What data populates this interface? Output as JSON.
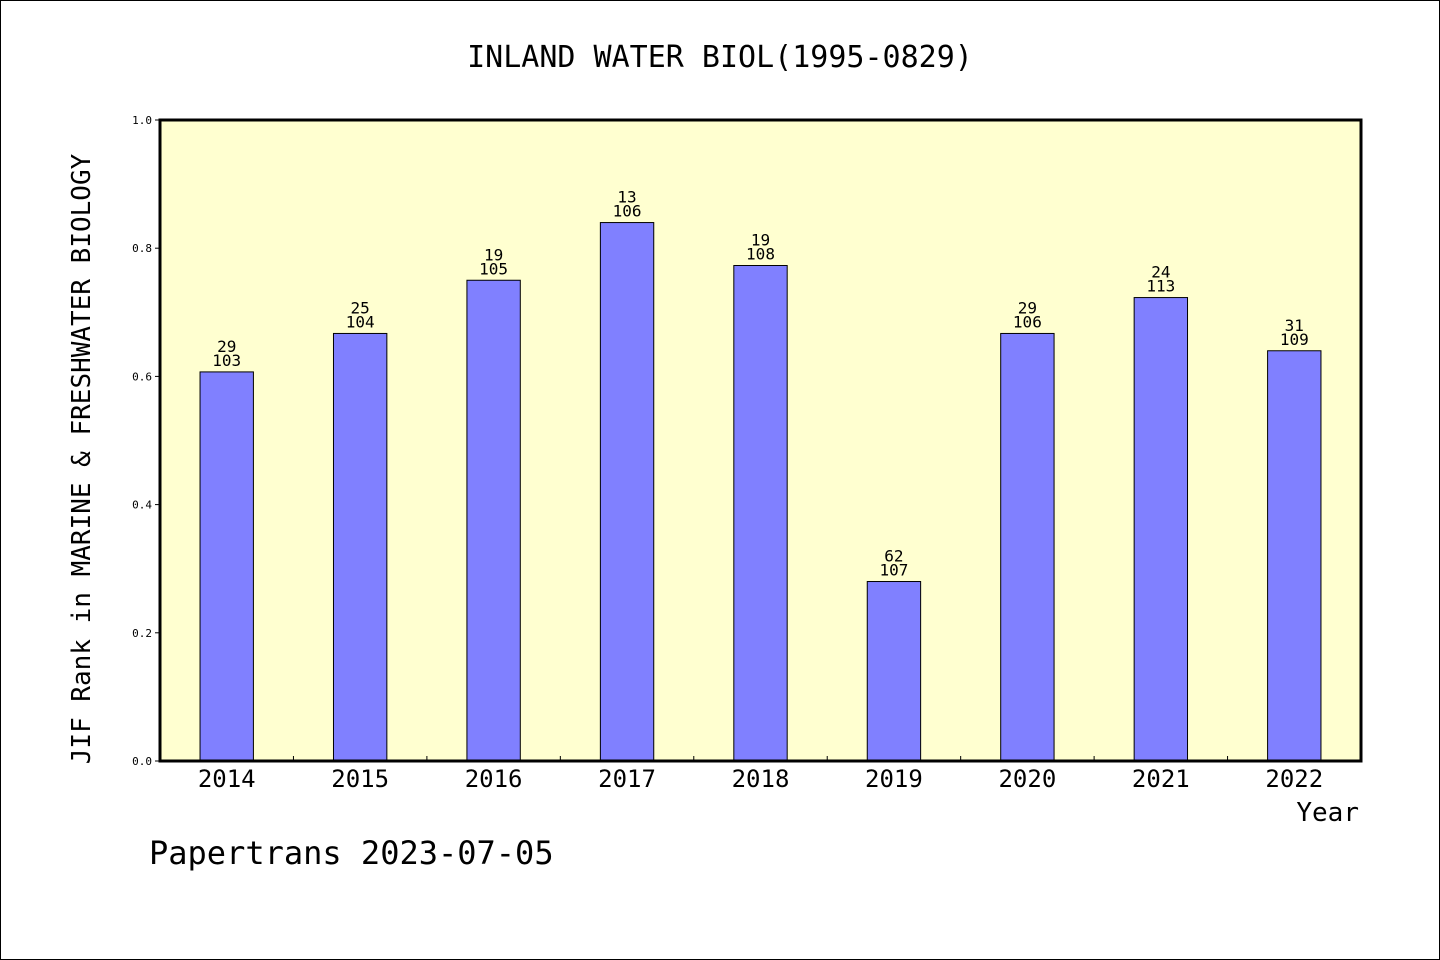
{
  "chart_data": {
    "type": "bar",
    "title": "INLAND WATER BIOL(1995-0829)",
    "xlabel": "Year",
    "ylabel": "JIF Rank in MARINE & FRESHWATER BIOLOGY",
    "ylim": [
      0.0,
      1.0
    ],
    "yticks": [
      "0.0",
      "0.2",
      "0.4",
      "0.6",
      "0.8",
      "1.0"
    ],
    "categories": [
      "2014",
      "2015",
      "2016",
      "2017",
      "2018",
      "2019",
      "2020",
      "2021",
      "2022"
    ],
    "values": [
      0.607,
      0.667,
      0.75,
      0.84,
      0.773,
      0.28,
      0.667,
      0.723,
      0.64
    ],
    "rank_labels": [
      "29",
      "25",
      "19",
      "13",
      "19",
      "62",
      "29",
      "24",
      "31"
    ],
    "total_labels": [
      "103",
      "104",
      "105",
      "106",
      "108",
      "107",
      "106",
      "113",
      "109"
    ],
    "grid": false,
    "colors": {
      "bar": "#8080ff",
      "plot_background": "#ffffd0",
      "axis": "#000000"
    }
  },
  "footer": {
    "credit": "Papertrans 2023-07-05"
  }
}
